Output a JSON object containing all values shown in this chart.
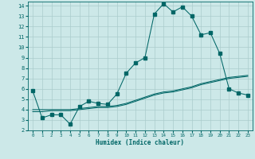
{
  "xlabel": "Humidex (Indice chaleur)",
  "bg_color": "#cce8e8",
  "grid_color": "#aacccc",
  "line_color": "#006666",
  "xlim": [
    -0.5,
    23.5
  ],
  "ylim": [
    2,
    14.4
  ],
  "xticks": [
    0,
    1,
    2,
    3,
    4,
    5,
    6,
    7,
    8,
    9,
    10,
    11,
    12,
    13,
    14,
    15,
    16,
    17,
    18,
    19,
    20,
    21,
    22,
    23
  ],
  "yticks": [
    2,
    3,
    4,
    5,
    6,
    7,
    8,
    9,
    10,
    11,
    12,
    13,
    14
  ],
  "series1_x": [
    0,
    1,
    2,
    3,
    4,
    5,
    6,
    7,
    8,
    9,
    10,
    11,
    12,
    13,
    14,
    15,
    16,
    17,
    18,
    19,
    20,
    21,
    22,
    23
  ],
  "series1_y": [
    5.8,
    3.2,
    3.5,
    3.5,
    2.6,
    4.3,
    4.8,
    4.6,
    4.5,
    5.5,
    7.5,
    8.5,
    9.0,
    13.2,
    14.2,
    13.4,
    13.9,
    13.0,
    11.2,
    11.4,
    9.4,
    6.0,
    5.6,
    5.4
  ],
  "series2_x": [
    0,
    1,
    2,
    3,
    4,
    5,
    6,
    7,
    8,
    9,
    10,
    11,
    12,
    13,
    14,
    15,
    16,
    17,
    18,
    19,
    20,
    21,
    22,
    23
  ],
  "series2_y": [
    4.0,
    4.0,
    4.0,
    4.0,
    4.0,
    4.1,
    4.2,
    4.3,
    4.3,
    4.4,
    4.6,
    4.9,
    5.2,
    5.5,
    5.7,
    5.8,
    6.0,
    6.2,
    6.5,
    6.7,
    6.9,
    7.1,
    7.2,
    7.3
  ],
  "series3_x": [
    0,
    1,
    2,
    3,
    4,
    5,
    6,
    7,
    8,
    9,
    10,
    11,
    12,
    13,
    14,
    15,
    16,
    17,
    18,
    19,
    20,
    21,
    22,
    23
  ],
  "series3_y": [
    3.8,
    3.8,
    3.9,
    3.9,
    3.9,
    4.0,
    4.1,
    4.2,
    4.2,
    4.3,
    4.5,
    4.8,
    5.1,
    5.4,
    5.6,
    5.7,
    5.9,
    6.1,
    6.4,
    6.6,
    6.8,
    7.0,
    7.1,
    7.2
  ],
  "xlabel_fontsize": 5.5,
  "tick_fontsize_x": 4.2,
  "tick_fontsize_y": 5.0
}
